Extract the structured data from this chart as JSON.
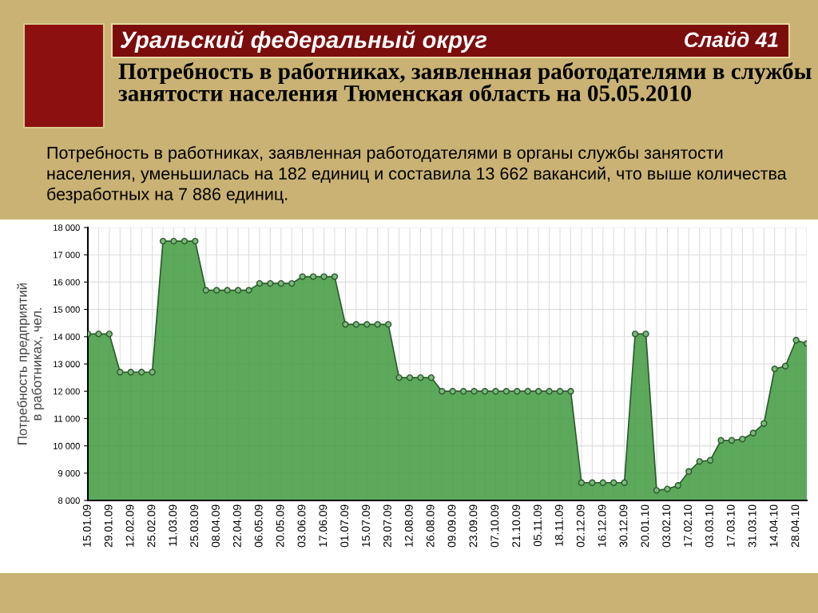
{
  "chart_data": {
    "type": "area",
    "title": "Потребность в работниках, заявленная работодателями в службы занятости населения Тюменская область на 05.05.2010",
    "subtitle": "Потребность в работниках, заявленная работодателями в органы службы занятости населения, уменьшилась на 182 единиц и составила 13 662 вакансий, что выше количества безработных на 7 886 единиц.",
    "annotations": [
      "Уральский федеральный округ",
      "Слайд 41"
    ],
    "ylabel": "Потребность предприятий\nв работниках, чел.",
    "categories": [
      "15.01.09",
      null,
      "29.01.09",
      null,
      "12.02.09",
      null,
      "25.02.09",
      null,
      "11.03.09",
      null,
      "25.03.09",
      null,
      "08.04.09",
      null,
      "22.04.09",
      null,
      "06.05.09",
      null,
      "20.05.09",
      null,
      "03.06.09",
      null,
      "17.06.09",
      null,
      "01.07.09",
      null,
      "15.07.09",
      null,
      "29.07.09",
      null,
      "12.08.09",
      null,
      "26.08.09",
      null,
      "09.09.09",
      null,
      "23.09.09",
      null,
      "07.10.09",
      null,
      "21.10.09",
      null,
      "05.11.09",
      null,
      "18.11.09",
      null,
      "02.12.09",
      null,
      "16.12.09",
      null,
      "30.12.09",
      null,
      "20.01.10",
      null,
      "03.02.10",
      null,
      "17.02.10",
      null,
      "03.03.10",
      null,
      "17.03.10",
      null,
      "31.03.10",
      null,
      "14.04.10",
      null,
      "28.04.10",
      null
    ],
    "series": [
      {
        "color": "#3f9a3f",
        "values": [
          14100,
          14100,
          14100,
          12700,
          12700,
          12700,
          12700,
          17500,
          17500,
          17500,
          17500,
          15700,
          15700,
          15700,
          15700,
          15700,
          15950,
          15950,
          15950,
          15950,
          16200,
          16200,
          16200,
          16200,
          14450,
          14450,
          14450,
          14450,
          14450,
          12500,
          12500,
          12500,
          12500,
          12000,
          12000,
          12000,
          12000,
          12000,
          12000,
          12000,
          12000,
          12000,
          12000,
          12000,
          12000,
          12000,
          8650,
          8650,
          8650,
          8650,
          8650,
          14100,
          14100,
          8370,
          8420,
          8550,
          9060,
          9430,
          9470,
          10200,
          10200,
          10250,
          10470,
          10820,
          12820,
          12920,
          13870,
          13750
        ]
      }
    ],
    "ylim": [
      8000,
      18000
    ],
    "yticks": [
      {
        "value": 8000,
        "label": "8 000"
      },
      {
        "value": 9000,
        "label": "9 000"
      },
      {
        "value": 10000,
        "label": "10 000"
      },
      {
        "value": 11000,
        "label": "11 000"
      },
      {
        "value": 12000,
        "label": "12 000"
      },
      {
        "value": 13000,
        "label": "13 000"
      },
      {
        "value": 14000,
        "label": "14 000"
      },
      {
        "value": 15000,
        "label": "15 000"
      },
      {
        "value": 16000,
        "label": "16 000"
      },
      {
        "value": 17000,
        "label": "17 000"
      },
      {
        "value": 18000,
        "label": "18 000"
      }
    ],
    "grid": true,
    "marker": "circle",
    "line_style": "solid"
  }
}
